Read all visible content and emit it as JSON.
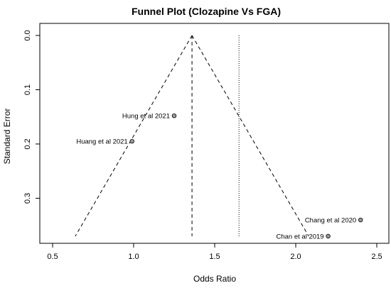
{
  "chart_data": {
    "type": "scatter",
    "title": "Funnel Plot (Clozapine Vs FGA)",
    "xlabel": "Odds Ratio",
    "ylabel": "Standard Error",
    "xlim": [
      0.5,
      2.5
    ],
    "ylim": [
      0.0,
      0.37
    ],
    "y_reversed": true,
    "x_ticks": [
      0.5,
      1.0,
      1.5,
      2.0,
      2.5
    ],
    "x_tick_labels": [
      "0.5",
      "1.0",
      "1.5",
      "2.0",
      "2.5"
    ],
    "y_ticks": [
      0.0,
      0.1,
      0.2,
      0.3
    ],
    "y_tick_labels": [
      "0.0",
      "0.1",
      "0.2",
      "0.3"
    ],
    "grid": false,
    "points": [
      {
        "label": "Hung et al 2021",
        "x": 1.25,
        "y": 0.148
      },
      {
        "label": "Huang et al 2021",
        "x": 0.99,
        "y": 0.195
      },
      {
        "label": "Chang et al 2020",
        "x": 2.4,
        "y": 0.34
      },
      {
        "label": "Chan et al 2019",
        "x": 2.2,
        "y": 0.37
      }
    ],
    "pooled_estimate": 1.36,
    "reference_line": 1.65,
    "funnel": {
      "apex": [
        1.36,
        0.0
      ],
      "left_base": [
        0.64,
        0.37
      ],
      "right_base": [
        2.08,
        0.37
      ]
    },
    "colors": {
      "point_fill": "#9a9a9a",
      "line": "#000000"
    }
  }
}
